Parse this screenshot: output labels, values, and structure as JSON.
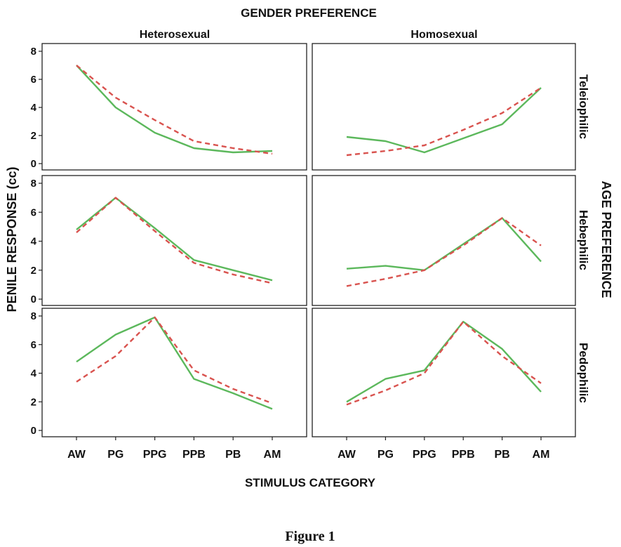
{
  "chart_data": {
    "type": "line",
    "title": "GENDER PREFERENCE",
    "xlabel": "STIMULUS CATEGORY",
    "ylabel": "PENILE RESPONSE (cc)",
    "right_label": "AGE PREFERENCE",
    "caption": "Figure 1",
    "columns": [
      "Heterosexual",
      "Homosexual"
    ],
    "rows": [
      "Teleiophilic",
      "Hebephilic",
      "Pedophilic"
    ],
    "categories": [
      "AW",
      "PG",
      "PPG",
      "PPB",
      "PB",
      "AM"
    ],
    "ylim": [
      0,
      8
    ],
    "yticks": [
      "0",
      "2",
      "4",
      "6",
      "8"
    ],
    "grid": false,
    "series_colors": [
      "#5cb85c",
      "#d9534f"
    ],
    "panels": [
      {
        "row": 0,
        "col": 0,
        "solid": [
          7.0,
          4.0,
          2.2,
          1.1,
          0.8,
          0.9
        ],
        "dashed": [
          7.0,
          4.7,
          3.1,
          1.6,
          1.1,
          0.7
        ]
      },
      {
        "row": 0,
        "col": 1,
        "solid": [
          1.9,
          1.6,
          0.8,
          1.8,
          2.8,
          5.4
        ],
        "dashed": [
          0.6,
          0.9,
          1.3,
          2.4,
          3.6,
          5.4
        ]
      },
      {
        "row": 1,
        "col": 0,
        "solid": [
          4.8,
          7.0,
          4.9,
          2.7,
          2.0,
          1.3
        ],
        "dashed": [
          4.6,
          7.0,
          4.7,
          2.5,
          1.7,
          1.1
        ]
      },
      {
        "row": 1,
        "col": 1,
        "solid": [
          2.1,
          2.3,
          2.0,
          3.8,
          5.6,
          2.6
        ],
        "dashed": [
          0.9,
          1.4,
          2.0,
          3.7,
          5.6,
          3.7
        ]
      },
      {
        "row": 2,
        "col": 0,
        "solid": [
          4.8,
          6.7,
          7.9,
          3.6,
          2.6,
          1.5
        ],
        "dashed": [
          3.4,
          5.2,
          7.9,
          4.2,
          2.9,
          1.9
        ]
      },
      {
        "row": 2,
        "col": 1,
        "solid": [
          2.0,
          3.6,
          4.2,
          7.6,
          5.7,
          2.7
        ],
        "dashed": [
          1.8,
          2.8,
          4.0,
          7.6,
          5.2,
          3.3
        ]
      }
    ]
  }
}
